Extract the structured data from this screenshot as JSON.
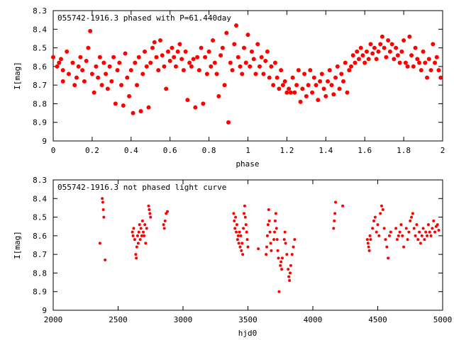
{
  "marker_color": "#ff0000",
  "chart_data": [
    {
      "type": "scatter",
      "title": "055742-1916.3 phased with P=61.440day",
      "xlabel": "phase",
      "ylabel": "I[mag]",
      "xlim": [
        0,
        2
      ],
      "ylim": [
        8.3,
        9.0
      ],
      "y_inverted": true,
      "grid": false,
      "marker": "filled-circle",
      "x_ticks": [
        "0",
        "0.2",
        "0.4",
        "0.6",
        "0.8",
        "1",
        "1.2",
        "1.4",
        "1.6",
        "1.8",
        "2"
      ],
      "y_ticks": [
        "8.3",
        "8.4",
        "8.5",
        "8.6",
        "8.7",
        "8.8",
        "8.9",
        "9"
      ],
      "points": [
        [
          0.0,
          8.55
        ],
        [
          0.02,
          8.6
        ],
        [
          0.03,
          8.58
        ],
        [
          0.04,
          8.56
        ],
        [
          0.05,
          8.62
        ],
        [
          0.05,
          8.68
        ],
        [
          0.07,
          8.52
        ],
        [
          0.08,
          8.64
        ],
        [
          0.1,
          8.58
        ],
        [
          0.11,
          8.7
        ],
        [
          0.12,
          8.66
        ],
        [
          0.13,
          8.6
        ],
        [
          0.14,
          8.55
        ],
        [
          0.15,
          8.62
        ],
        [
          0.16,
          8.68
        ],
        [
          0.17,
          8.57
        ],
        [
          0.18,
          8.5
        ],
        [
          0.19,
          8.41
        ],
        [
          0.2,
          8.64
        ],
        [
          0.21,
          8.74
        ],
        [
          0.22,
          8.6
        ],
        [
          0.23,
          8.66
        ],
        [
          0.24,
          8.55
        ],
        [
          0.25,
          8.7
        ],
        [
          0.26,
          8.58
        ],
        [
          0.27,
          8.64
        ],
        [
          0.28,
          8.72
        ],
        [
          0.29,
          8.6
        ],
        [
          0.3,
          8.68
        ],
        [
          0.31,
          8.55
        ],
        [
          0.32,
          8.8
        ],
        [
          0.33,
          8.62
        ],
        [
          0.34,
          8.58
        ],
        [
          0.35,
          8.7
        ],
        [
          0.36,
          8.81
        ],
        [
          0.37,
          8.53
        ],
        [
          0.38,
          8.66
        ],
        [
          0.39,
          8.76
        ],
        [
          0.4,
          8.62
        ],
        [
          0.41,
          8.85
        ],
        [
          0.42,
          8.58
        ],
        [
          0.43,
          8.7
        ],
        [
          0.44,
          8.55
        ],
        [
          0.45,
          8.84
        ],
        [
          0.46,
          8.64
        ],
        [
          0.47,
          8.52
        ],
        [
          0.48,
          8.6
        ],
        [
          0.49,
          8.82
        ],
        [
          0.5,
          8.58
        ],
        [
          0.51,
          8.5
        ],
        [
          0.52,
          8.47
        ],
        [
          0.53,
          8.55
        ],
        [
          0.54,
          8.62
        ],
        [
          0.55,
          8.46
        ],
        [
          0.56,
          8.54
        ],
        [
          0.57,
          8.6
        ],
        [
          0.58,
          8.72
        ],
        [
          0.59,
          8.52
        ],
        [
          0.6,
          8.57
        ],
        [
          0.61,
          8.5
        ],
        [
          0.62,
          8.55
        ],
        [
          0.63,
          8.6
        ],
        [
          0.64,
          8.52
        ],
        [
          0.65,
          8.48
        ],
        [
          0.66,
          8.56
        ],
        [
          0.67,
          8.62
        ],
        [
          0.68,
          8.52
        ],
        [
          0.69,
          8.78
        ],
        [
          0.7,
          8.58
        ],
        [
          0.71,
          8.6
        ],
        [
          0.72,
          8.56
        ],
        [
          0.73,
          8.82
        ],
        [
          0.74,
          8.55
        ],
        [
          0.75,
          8.62
        ],
        [
          0.76,
          8.5
        ],
        [
          0.77,
          8.8
        ],
        [
          0.78,
          8.55
        ],
        [
          0.79,
          8.64
        ],
        [
          0.8,
          8.52
        ],
        [
          0.81,
          8.6
        ],
        [
          0.82,
          8.46
        ],
        [
          0.83,
          8.58
        ],
        [
          0.84,
          8.64
        ],
        [
          0.85,
          8.76
        ],
        [
          0.86,
          8.54
        ],
        [
          0.87,
          8.5
        ],
        [
          0.88,
          8.7
        ],
        [
          0.89,
          8.42
        ],
        [
          0.9,
          8.9
        ],
        [
          0.91,
          8.58
        ],
        [
          0.92,
          8.62
        ],
        [
          0.93,
          8.48
        ],
        [
          0.94,
          8.38
        ],
        [
          0.95,
          8.55
        ],
        [
          0.96,
          8.6
        ],
        [
          0.97,
          8.64
        ],
        [
          0.98,
          8.5
        ],
        [
          0.99,
          8.58
        ],
        [
          1.0,
          8.43
        ],
        [
          1.01,
          8.6
        ],
        [
          1.02,
          8.52
        ],
        [
          1.03,
          8.56
        ],
        [
          1.04,
          8.64
        ],
        [
          1.05,
          8.48
        ],
        [
          1.06,
          8.6
        ],
        [
          1.07,
          8.55
        ],
        [
          1.08,
          8.64
        ],
        [
          1.09,
          8.57
        ],
        [
          1.1,
          8.52
        ],
        [
          1.11,
          8.66
        ],
        [
          1.12,
          8.6
        ],
        [
          1.13,
          8.7
        ],
        [
          1.14,
          8.58
        ],
        [
          1.15,
          8.66
        ],
        [
          1.16,
          8.72
        ],
        [
          1.17,
          8.62
        ],
        [
          1.18,
          8.7
        ],
        [
          1.19,
          8.68
        ],
        [
          1.2,
          8.74
        ],
        [
          1.21,
          8.72
        ],
        [
          1.22,
          8.74
        ],
        [
          1.23,
          8.66
        ],
        [
          1.24,
          8.74
        ],
        [
          1.25,
          8.7
        ],
        [
          1.26,
          8.62
        ],
        [
          1.27,
          8.79
        ],
        [
          1.28,
          8.72
        ],
        [
          1.29,
          8.64
        ],
        [
          1.3,
          8.76
        ],
        [
          1.31,
          8.7
        ],
        [
          1.32,
          8.62
        ],
        [
          1.33,
          8.74
        ],
        [
          1.34,
          8.66
        ],
        [
          1.35,
          8.7
        ],
        [
          1.36,
          8.78
        ],
        [
          1.37,
          8.68
        ],
        [
          1.38,
          8.64
        ],
        [
          1.39,
          8.72
        ],
        [
          1.4,
          8.76
        ],
        [
          1.41,
          8.68
        ],
        [
          1.42,
          8.62
        ],
        [
          1.43,
          8.7
        ],
        [
          1.44,
          8.75
        ],
        [
          1.45,
          8.66
        ],
        [
          1.46,
          8.6
        ],
        [
          1.47,
          8.72
        ],
        [
          1.48,
          8.64
        ],
        [
          1.49,
          8.68
        ],
        [
          1.5,
          8.58
        ],
        [
          1.51,
          8.74
        ],
        [
          1.52,
          8.62
        ],
        [
          1.53,
          8.6
        ],
        [
          1.54,
          8.54
        ],
        [
          1.55,
          8.58
        ],
        [
          1.56,
          8.52
        ],
        [
          1.57,
          8.56
        ],
        [
          1.58,
          8.5
        ],
        [
          1.59,
          8.54
        ],
        [
          1.6,
          8.58
        ],
        [
          1.61,
          8.52
        ],
        [
          1.62,
          8.56
        ],
        [
          1.63,
          8.48
        ],
        [
          1.64,
          8.53
        ],
        [
          1.65,
          8.5
        ],
        [
          1.66,
          8.56
        ],
        [
          1.67,
          8.52
        ],
        [
          1.68,
          8.48
        ],
        [
          1.69,
          8.44
        ],
        [
          1.7,
          8.5
        ],
        [
          1.71,
          8.55
        ],
        [
          1.72,
          8.46
        ],
        [
          1.73,
          8.52
        ],
        [
          1.74,
          8.48
        ],
        [
          1.75,
          8.56
        ],
        [
          1.76,
          8.5
        ],
        [
          1.77,
          8.54
        ],
        [
          1.78,
          8.58
        ],
        [
          1.79,
          8.52
        ],
        [
          1.8,
          8.46
        ],
        [
          1.81,
          8.58
        ],
        [
          1.82,
          8.6
        ],
        [
          1.83,
          8.44
        ],
        [
          1.84,
          8.54
        ],
        [
          1.85,
          8.6
        ],
        [
          1.86,
          8.5
        ],
        [
          1.87,
          8.56
        ],
        [
          1.88,
          8.58
        ],
        [
          1.89,
          8.62
        ],
        [
          1.9,
          8.52
        ],
        [
          1.91,
          8.58
        ],
        [
          1.92,
          8.66
        ],
        [
          1.93,
          8.56
        ],
        [
          1.94,
          8.62
        ],
        [
          1.95,
          8.48
        ],
        [
          1.96,
          8.58
        ],
        [
          1.97,
          8.55
        ],
        [
          1.98,
          8.62
        ],
        [
          1.99,
          8.66
        ]
      ]
    },
    {
      "type": "scatter",
      "title": "055742-1916.3 not phased light curve",
      "xlabel": "hjd0",
      "ylabel": "I[mag]",
      "xlim": [
        2000,
        5000
      ],
      "ylim": [
        8.3,
        9.0
      ],
      "y_inverted": true,
      "grid": false,
      "marker": "filled-circle",
      "x_ticks": [
        "2000",
        "2500",
        "3000",
        "3500",
        "4000",
        "4500",
        "5000"
      ],
      "y_ticks": [
        "8.3",
        "8.4",
        "8.5",
        "8.6",
        "8.7",
        "8.8",
        "8.9",
        "9"
      ],
      "points": [
        [
          2360,
          8.64
        ],
        [
          2378,
          8.4
        ],
        [
          2382,
          8.42
        ],
        [
          2386,
          8.46
        ],
        [
          2390,
          8.5
        ],
        [
          2400,
          8.73
        ],
        [
          2610,
          8.58
        ],
        [
          2615,
          8.6
        ],
        [
          2620,
          8.56
        ],
        [
          2628,
          8.62
        ],
        [
          2636,
          8.7
        ],
        [
          2640,
          8.72
        ],
        [
          2644,
          8.66
        ],
        [
          2650,
          8.6
        ],
        [
          2655,
          8.64
        ],
        [
          2660,
          8.58
        ],
        [
          2665,
          8.54
        ],
        [
          2670,
          8.62
        ],
        [
          2676,
          8.56
        ],
        [
          2682,
          8.6
        ],
        [
          2688,
          8.52
        ],
        [
          2694,
          8.58
        ],
        [
          2700,
          8.6
        ],
        [
          2706,
          8.54
        ],
        [
          2712,
          8.64
        ],
        [
          2720,
          8.56
        ],
        [
          2735,
          8.44
        ],
        [
          2740,
          8.46
        ],
        [
          2745,
          8.48
        ],
        [
          2750,
          8.5
        ],
        [
          2850,
          8.54
        ],
        [
          2856,
          8.56
        ],
        [
          2862,
          8.52
        ],
        [
          2870,
          8.48
        ],
        [
          2880,
          8.47
        ],
        [
          3390,
          8.48
        ],
        [
          3395,
          8.52
        ],
        [
          3400,
          8.56
        ],
        [
          3405,
          8.5
        ],
        [
          3410,
          8.58
        ],
        [
          3415,
          8.54
        ],
        [
          3420,
          8.62
        ],
        [
          3425,
          8.6
        ],
        [
          3430,
          8.64
        ],
        [
          3435,
          8.58
        ],
        [
          3440,
          8.66
        ],
        [
          3445,
          8.6
        ],
        [
          3450,
          8.68
        ],
        [
          3455,
          8.64
        ],
        [
          3460,
          8.7
        ],
        [
          3465,
          8.56
        ],
        [
          3470,
          8.48
        ],
        [
          3475,
          8.44
        ],
        [
          3480,
          8.5
        ],
        [
          3485,
          8.54
        ],
        [
          3490,
          8.58
        ],
        [
          3495,
          8.62
        ],
        [
          3500,
          8.66
        ],
        [
          3580,
          8.67
        ],
        [
          3640,
          8.7
        ],
        [
          3645,
          8.66
        ],
        [
          3650,
          8.6
        ],
        [
          3655,
          8.54
        ],
        [
          3660,
          8.46
        ],
        [
          3665,
          8.52
        ],
        [
          3670,
          8.58
        ],
        [
          3675,
          8.64
        ],
        [
          3680,
          8.68
        ],
        [
          3700,
          8.62
        ],
        [
          3705,
          8.58
        ],
        [
          3710,
          8.52
        ],
        [
          3715,
          8.48
        ],
        [
          3720,
          8.56
        ],
        [
          3725,
          8.62
        ],
        [
          3730,
          8.68
        ],
        [
          3735,
          8.72
        ],
        [
          3740,
          8.9
        ],
        [
          3750,
          8.76
        ],
        [
          3755,
          8.74
        ],
        [
          3760,
          8.78
        ],
        [
          3765,
          8.72
        ],
        [
          3780,
          8.62
        ],
        [
          3785,
          8.58
        ],
        [
          3790,
          8.64
        ],
        [
          3800,
          8.7
        ],
        [
          3810,
          8.78
        ],
        [
          3815,
          8.82
        ],
        [
          3820,
          8.84
        ],
        [
          3825,
          8.8
        ],
        [
          3830,
          8.76
        ],
        [
          3840,
          8.7
        ],
        [
          3850,
          8.66
        ],
        [
          3860,
          8.62
        ],
        [
          4160,
          8.56
        ],
        [
          4165,
          8.52
        ],
        [
          4170,
          8.48
        ],
        [
          4175,
          8.42
        ],
        [
          4230,
          8.44
        ],
        [
          4420,
          8.62
        ],
        [
          4425,
          8.64
        ],
        [
          4430,
          8.66
        ],
        [
          4435,
          8.68
        ],
        [
          4440,
          8.6
        ],
        [
          4445,
          8.62
        ],
        [
          4460,
          8.56
        ],
        [
          4470,
          8.52
        ],
        [
          4480,
          8.5
        ],
        [
          4490,
          8.58
        ],
        [
          4500,
          8.54
        ],
        [
          4510,
          8.6
        ],
        [
          4520,
          8.48
        ],
        [
          4530,
          8.44
        ],
        [
          4540,
          8.46
        ],
        [
          4550,
          8.56
        ],
        [
          4560,
          8.62
        ],
        [
          4570,
          8.66
        ],
        [
          4580,
          8.72
        ],
        [
          4590,
          8.6
        ],
        [
          4600,
          8.58
        ],
        [
          4640,
          8.56
        ],
        [
          4650,
          8.62
        ],
        [
          4660,
          8.6
        ],
        [
          4670,
          8.58
        ],
        [
          4680,
          8.54
        ],
        [
          4690,
          8.6
        ],
        [
          4700,
          8.66
        ],
        [
          4720,
          8.56
        ],
        [
          4730,
          8.62
        ],
        [
          4740,
          8.58
        ],
        [
          4750,
          8.52
        ],
        [
          4760,
          8.5
        ],
        [
          4770,
          8.48
        ],
        [
          4780,
          8.56
        ],
        [
          4790,
          8.6
        ],
        [
          4800,
          8.54
        ],
        [
          4810,
          8.62
        ],
        [
          4820,
          8.58
        ],
        [
          4830,
          8.64
        ],
        [
          4840,
          8.6
        ],
        [
          4850,
          8.56
        ],
        [
          4860,
          8.62
        ],
        [
          4870,
          8.58
        ],
        [
          4880,
          8.6
        ],
        [
          4890,
          8.54
        ],
        [
          4900,
          8.58
        ],
        [
          4910,
          8.6
        ],
        [
          4920,
          8.56
        ],
        [
          4930,
          8.52
        ],
        [
          4940,
          8.58
        ],
        [
          4950,
          8.55
        ],
        [
          4960,
          8.54
        ],
        [
          4970,
          8.57
        ]
      ]
    }
  ]
}
